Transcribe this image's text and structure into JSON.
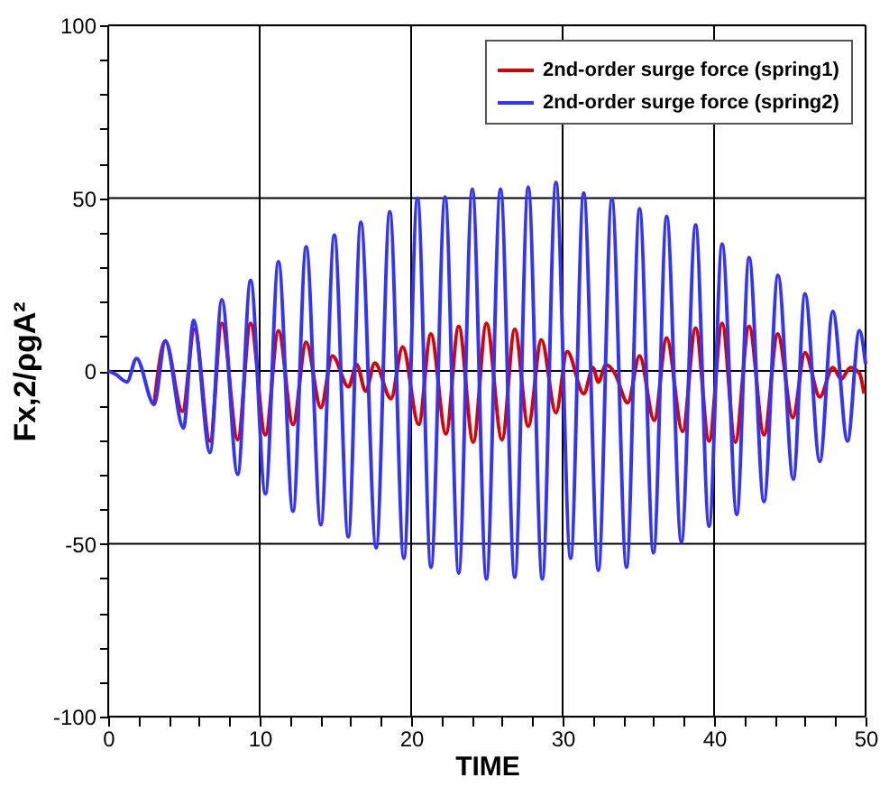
{
  "chart_data": {
    "type": "line",
    "xlabel": "TIME",
    "ylabel": "Fx,2/ρgA²",
    "xlim": [
      0,
      50
    ],
    "ylim": [
      -100,
      100
    ],
    "xticks": [
      0,
      {
        "value": 2,
        "label": null
      },
      {
        "value": 4,
        "label": null
      },
      {
        "value": 6,
        "label": null
      },
      {
        "value": 8,
        "label": null
      },
      10,
      {
        "value": 12,
        "label": null
      },
      {
        "value": 14,
        "label": null
      },
      {
        "value": 16,
        "label": null
      },
      {
        "value": 18,
        "label": null
      },
      20,
      {
        "value": 22,
        "label": null
      },
      {
        "value": 24,
        "label": null
      },
      {
        "value": 26,
        "label": null
      },
      {
        "value": 28,
        "label": null
      },
      30,
      {
        "value": 32,
        "label": null
      },
      {
        "value": 34,
        "label": null
      },
      {
        "value": 36,
        "label": null
      },
      {
        "value": 38,
        "label": null
      },
      40,
      {
        "value": 42,
        "label": null
      },
      {
        "value": 44,
        "label": null
      },
      {
        "value": 46,
        "label": null
      },
      {
        "value": 48,
        "label": null
      },
      50
    ],
    "yticks": [
      -100,
      {
        "value": -90,
        "label": null
      },
      {
        "value": -80,
        "label": null
      },
      {
        "value": -70,
        "label": null
      },
      {
        "value": -60,
        "label": null
      },
      -50,
      {
        "value": -40,
        "label": null
      },
      {
        "value": -30,
        "label": null
      },
      {
        "value": -20,
        "label": null
      },
      {
        "value": -10,
        "label": null
      },
      0,
      {
        "value": 10,
        "label": null
      },
      {
        "value": 20,
        "label": null
      },
      {
        "value": 30,
        "label": null
      },
      {
        "value": 40,
        "label": null
      },
      50,
      {
        "value": 60,
        "label": null
      },
      {
        "value": 70,
        "label": null
      },
      {
        "value": 80,
        "label": null
      },
      {
        "value": 90,
        "label": null
      },
      100
    ],
    "grid": true,
    "legend": "top right",
    "line_style": "solid",
    "marker": "none",
    "series": [
      {
        "name": "2nd-order surge force (spring1)",
        "color": "#dd0000",
        "x": [
          3.03,
          3.77,
          4.9,
          5.7,
          6.72,
          7.5,
          8.55,
          9.4,
          10.38,
          11.24,
          12.2,
          13.07,
          14.04,
          14.8,
          15.87,
          16.4,
          17.0,
          17.6,
          18.67,
          19.44,
          20.5,
          21.3,
          22.3,
          23.14,
          24.1,
          24.97,
          26.0,
          26.84,
          27.73,
          28.6,
          29.56,
          30.3,
          31.4,
          32.0,
          32.36,
          32.86,
          33.45,
          34.3,
          35.08,
          36.05,
          36.87,
          37.92,
          38.78,
          39.67,
          40.53,
          41.4,
          42.31,
          43.3,
          44.2,
          45.2,
          46.0,
          46.98,
          47.84,
          48.4,
          49.0,
          49.6,
          49.9
        ],
        "values": [
          -9.7,
          8.7,
          -11.7,
          12.1,
          -20.3,
          13.8,
          -19.9,
          13.8,
          -18.5,
          11.6,
          -15.5,
          8.3,
          -10.6,
          4.4,
          -4.6,
          1.9,
          -5.8,
          2.3,
          -8,
          7,
          -15.5,
          10.7,
          -18.2,
          12.9,
          -20.6,
          13.8,
          -19.9,
          12.1,
          -16,
          9,
          -12.1,
          5.6,
          -6.6,
          1,
          -3.2,
          1.8,
          -0.7,
          -9.2,
          4.4,
          -14.3,
          9.5,
          -17.5,
          12.4,
          -20.3,
          13.8,
          -20.6,
          12.9,
          -18.5,
          10.7,
          -13.5,
          5.3,
          -7.5,
          1,
          -2.3,
          1,
          -0.7,
          -6.5
        ]
      },
      {
        "name": "2nd-order surge force (spring2)",
        "color": "#3333ff",
        "x": [
          0,
          0.5,
          1.24,
          1.87,
          3.03,
          3.77,
          4.97,
          5.64,
          6.72,
          7.5,
          8.55,
          9.4,
          10.38,
          11.24,
          12.2,
          13.07,
          14.04,
          14.93,
          15.85,
          16.68,
          17.69,
          18.59,
          19.52,
          20.42,
          21.31,
          22.24,
          23.14,
          24.04,
          24.97,
          25.9,
          26.84,
          27.73,
          28.66,
          29.56,
          30.53,
          31.39,
          32.36,
          33.25,
          34.22,
          35.08,
          36.0,
          36.87,
          37.84,
          38.78,
          39.67,
          40.53,
          41.5,
          42.31,
          43.29,
          44.22,
          45.23,
          46.0,
          46.98,
          47.84,
          48.81,
          49.59,
          50
        ],
        "values": [
          0,
          -1,
          -3.2,
          3.6,
          -9.7,
          8.7,
          -16.5,
          14.6,
          -23.6,
          20.6,
          -29.9,
          26.2,
          -35.5,
          31.6,
          -40.6,
          35.9,
          -44.5,
          39.3,
          -48,
          43,
          -51.2,
          46.1,
          -54.2,
          50,
          -56.8,
          50.3,
          -58.5,
          52.6,
          -60.2,
          52.6,
          -59.7,
          53.2,
          -60.2,
          54.6,
          -54.2,
          51.5,
          -57.7,
          49.8,
          -56.8,
          46.9,
          -52.6,
          44.7,
          -49.5,
          42.2,
          -44.9,
          36.7,
          -41.5,
          32.8,
          -37.8,
          27.7,
          -31.3,
          22.3,
          -26.2,
          17.2,
          -20.3,
          11.7,
          2
        ]
      }
    ]
  }
}
